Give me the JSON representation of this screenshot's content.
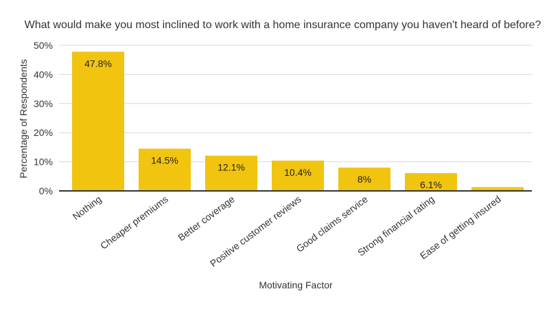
{
  "chart_data": {
    "type": "bar",
    "title": "What would make you most inclined to work with a home insurance company you haven't heard of before?",
    "xlabel": "Motivating Factor",
    "ylabel": "Percentage of Respondents",
    "categories": [
      "Nothing",
      "Cheaper premiums",
      "Better coverage",
      "Positive customer reviews",
      "Good claims service",
      "Strong financial rating",
      "Ease of getting insured"
    ],
    "values": [
      47.8,
      14.5,
      12.1,
      10.4,
      8,
      6.1,
      1.3
    ],
    "value_labels": [
      "47.8%",
      "14.5%",
      "12.1%",
      "10.4%",
      "8%",
      "6.1%",
      ""
    ],
    "ylim": [
      0,
      50
    ],
    "yticks": [
      0,
      10,
      20,
      30,
      40,
      50
    ],
    "ytick_labels": [
      "0%",
      "10%",
      "20%",
      "30%",
      "40%",
      "50%"
    ],
    "grid": true,
    "bar_color": "#f1c40f"
  }
}
